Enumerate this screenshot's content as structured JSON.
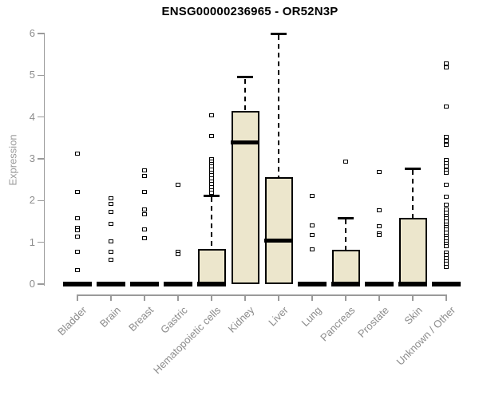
{
  "title": "ENSG00000236965 - OR52N3P",
  "colors": {
    "box_fill": "#ECE6CC",
    "box_border": "#000000",
    "median": "#000000",
    "outlier_border": "#000000",
    "axis": "#9a9a9a",
    "tick_label": "#8c8c8c",
    "title": "#000000"
  },
  "chart_data": {
    "type": "boxplot",
    "title": "ENSG00000236965 - OR52N3P",
    "xlabel": "",
    "ylabel": "Expression",
    "ylim": [
      0,
      6
    ],
    "y_ticks": [
      0,
      1,
      2,
      3,
      4,
      5,
      6
    ],
    "grid": false,
    "legend": false,
    "categories": [
      "Bladder",
      "Brain",
      "Breast",
      "Gastric",
      "Hematopoietic cells",
      "Kidney",
      "Liver",
      "Lung",
      "Pancreas",
      "Prostate",
      "Skin",
      "Unknown / Other"
    ],
    "series": [
      {
        "name": "Bladder",
        "q1": 0,
        "median": 0,
        "q3": 0,
        "whisker_low": 0,
        "whisker_high": 0,
        "outliers": [
          3.12,
          2.2,
          1.58,
          1.34,
          1.29,
          1.14,
          0.78,
          0.34
        ]
      },
      {
        "name": "Brain",
        "q1": 0,
        "median": 0,
        "q3": 0,
        "whisker_low": 0,
        "whisker_high": 0,
        "outliers": [
          2.06,
          1.92,
          1.73,
          1.45,
          1.03,
          0.78,
          0.59
        ]
      },
      {
        "name": "Breast",
        "q1": 0,
        "median": 0,
        "q3": 0,
        "whisker_low": 0,
        "whisker_high": 0,
        "outliers": [
          2.72,
          2.59,
          2.21,
          1.79,
          1.68,
          1.3,
          1.1
        ]
      },
      {
        "name": "Gastric",
        "q1": 0,
        "median": 0,
        "q3": 0,
        "whisker_low": 0,
        "whisker_high": 0,
        "outliers": [
          2.38,
          0.78,
          0.71
        ]
      },
      {
        "name": "Hematopoietic cells",
        "q1": 0,
        "median": 0,
        "q3": 0.85,
        "whisker_low": 0,
        "whisker_high": 2.12,
        "outliers": [
          4.05,
          3.55,
          3.0,
          2.94,
          2.88,
          2.81,
          2.74,
          2.67,
          2.6,
          2.53,
          2.46,
          2.39,
          2.32,
          2.25,
          2.18
        ]
      },
      {
        "name": "Kidney",
        "q1": 0,
        "median": 3.4,
        "q3": 4.15,
        "whisker_low": 0,
        "whisker_high": 4.95,
        "outliers": []
      },
      {
        "name": "Liver",
        "q1": 0,
        "median": 1.05,
        "q3": 2.57,
        "whisker_low": 0,
        "whisker_high": 6.0,
        "outliers": []
      },
      {
        "name": "Lung",
        "q1": 0,
        "median": 0,
        "q3": 0,
        "whisker_low": 0,
        "whisker_high": 0,
        "outliers": [
          2.12,
          1.41,
          1.17,
          0.84
        ]
      },
      {
        "name": "Pancreas",
        "q1": 0,
        "median": 0,
        "q3": 0.82,
        "whisker_low": 0,
        "whisker_high": 1.58,
        "outliers": [
          2.93
        ]
      },
      {
        "name": "Prostate",
        "q1": 0,
        "median": 0,
        "q3": 0,
        "whisker_low": 0,
        "whisker_high": 0,
        "outliers": [
          2.69,
          1.77,
          1.39,
          1.22,
          1.18
        ]
      },
      {
        "name": "Skin",
        "q1": 0,
        "median": 0,
        "q3": 1.58,
        "whisker_low": 0,
        "whisker_high": 2.77,
        "outliers": []
      },
      {
        "name": "Unknown / Other",
        "q1": 0,
        "median": 0,
        "q3": 0,
        "whisker_low": 0,
        "whisker_high": 0,
        "outliers": [
          5.28,
          5.18,
          4.25,
          3.53,
          3.43,
          3.33,
          2.97,
          2.9,
          2.82,
          2.72,
          2.66,
          2.38,
          2.09,
          1.9,
          1.78,
          1.71,
          1.64,
          1.57,
          1.5,
          1.43,
          1.37,
          1.3,
          1.23,
          1.16,
          1.1,
          1.03,
          0.96,
          0.9,
          0.76,
          0.69,
          0.62,
          0.55,
          0.48,
          0.42
        ]
      }
    ]
  }
}
